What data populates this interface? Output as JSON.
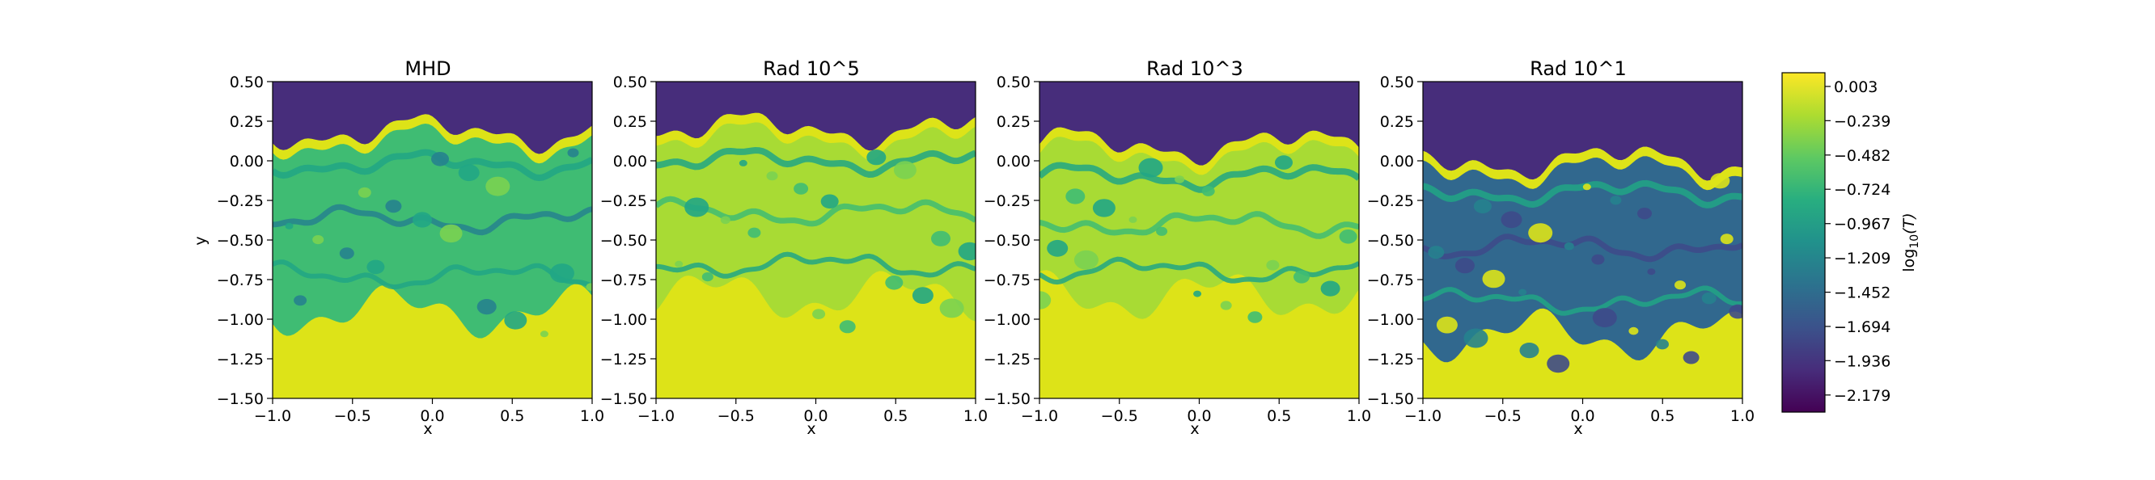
{
  "chart_data": {
    "type": "heatmap",
    "panels": [
      {
        "title": "MHD",
        "xlabel": "x",
        "ylabel": "y",
        "regime": "mhd"
      },
      {
        "title": "Rad 10^5",
        "xlabel": "x",
        "ylabel": "",
        "regime": "rad5"
      },
      {
        "title": "Rad 10^3",
        "xlabel": "x",
        "ylabel": "",
        "regime": "rad3"
      },
      {
        "title": "Rad 10^1",
        "xlabel": "x",
        "ylabel": "",
        "regime": "rad1"
      }
    ],
    "xlim": [
      -1.0,
      1.0
    ],
    "ylim": [
      -1.5,
      0.5
    ],
    "xticks": [
      -1.0,
      -0.5,
      0.0,
      0.5,
      1.0
    ],
    "xtick_labels": [
      "−1.0",
      "−0.5",
      "0.0",
      "0.5",
      "1.0"
    ],
    "yticks": [
      0.5,
      0.25,
      0.0,
      -0.25,
      -0.5,
      -0.75,
      -1.0,
      -1.25,
      -1.5
    ],
    "ytick_labels": [
      "0.50",
      "0.25",
      "0.00",
      "−0.25",
      "−0.50",
      "−0.75",
      "−1.00",
      "−1.25",
      "−1.50"
    ],
    "colorbar": {
      "label": "log10(T)",
      "label_base": "log",
      "label_sub": "10",
      "label_arg": "(T)",
      "range": [
        -2.3,
        0.1
      ],
      "ticks": [
        0.003,
        -0.239,
        -0.482,
        -0.724,
        -0.967,
        -1.209,
        -1.452,
        -1.694,
        -1.936,
        -2.179
      ],
      "tick_labels": [
        "0.003",
        "−0.239",
        "−0.482",
        "−0.724",
        "−0.967",
        "−1.209",
        "−1.452",
        "−1.694",
        "−1.936",
        "−2.179"
      ],
      "colormap": "viridis",
      "colors": [
        "#440154",
        "#472d7b",
        "#3b528b",
        "#2c728e",
        "#21918c",
        "#28ae80",
        "#5ec962",
        "#addc30",
        "#fde725"
      ]
    }
  }
}
